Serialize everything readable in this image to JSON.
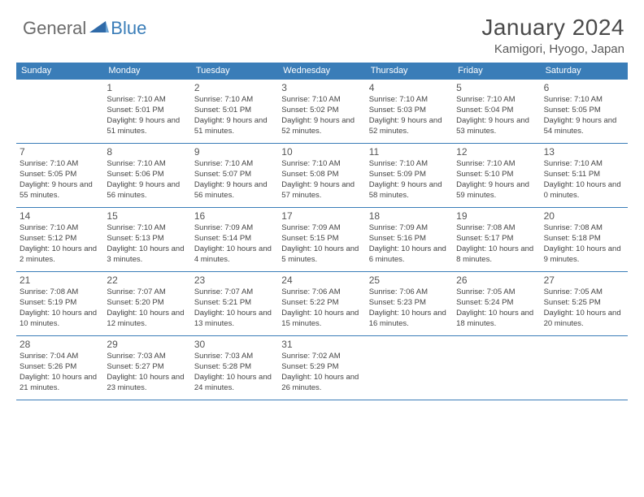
{
  "logo": {
    "general": "General",
    "blue": "Blue"
  },
  "header": {
    "month": "January 2024",
    "location": "Kamigori, Hyogo, Japan"
  },
  "weekdays": [
    "Sunday",
    "Monday",
    "Tuesday",
    "Wednesday",
    "Thursday",
    "Friday",
    "Saturday"
  ],
  "colors": {
    "header_bar": "#3a7db8",
    "text": "#444444",
    "title": "#4a4a4a",
    "rule": "#3a7db8"
  },
  "weeks": [
    [
      null,
      {
        "n": "1",
        "sunrise": "7:10 AM",
        "sunset": "5:01 PM",
        "daylight": "9 hours and 51 minutes."
      },
      {
        "n": "2",
        "sunrise": "7:10 AM",
        "sunset": "5:01 PM",
        "daylight": "9 hours and 51 minutes."
      },
      {
        "n": "3",
        "sunrise": "7:10 AM",
        "sunset": "5:02 PM",
        "daylight": "9 hours and 52 minutes."
      },
      {
        "n": "4",
        "sunrise": "7:10 AM",
        "sunset": "5:03 PM",
        "daylight": "9 hours and 52 minutes."
      },
      {
        "n": "5",
        "sunrise": "7:10 AM",
        "sunset": "5:04 PM",
        "daylight": "9 hours and 53 minutes."
      },
      {
        "n": "6",
        "sunrise": "7:10 AM",
        "sunset": "5:05 PM",
        "daylight": "9 hours and 54 minutes."
      }
    ],
    [
      {
        "n": "7",
        "sunrise": "7:10 AM",
        "sunset": "5:05 PM",
        "daylight": "9 hours and 55 minutes."
      },
      {
        "n": "8",
        "sunrise": "7:10 AM",
        "sunset": "5:06 PM",
        "daylight": "9 hours and 56 minutes."
      },
      {
        "n": "9",
        "sunrise": "7:10 AM",
        "sunset": "5:07 PM",
        "daylight": "9 hours and 56 minutes."
      },
      {
        "n": "10",
        "sunrise": "7:10 AM",
        "sunset": "5:08 PM",
        "daylight": "9 hours and 57 minutes."
      },
      {
        "n": "11",
        "sunrise": "7:10 AM",
        "sunset": "5:09 PM",
        "daylight": "9 hours and 58 minutes."
      },
      {
        "n": "12",
        "sunrise": "7:10 AM",
        "sunset": "5:10 PM",
        "daylight": "9 hours and 59 minutes."
      },
      {
        "n": "13",
        "sunrise": "7:10 AM",
        "sunset": "5:11 PM",
        "daylight": "10 hours and 0 minutes."
      }
    ],
    [
      {
        "n": "14",
        "sunrise": "7:10 AM",
        "sunset": "5:12 PM",
        "daylight": "10 hours and 2 minutes."
      },
      {
        "n": "15",
        "sunrise": "7:10 AM",
        "sunset": "5:13 PM",
        "daylight": "10 hours and 3 minutes."
      },
      {
        "n": "16",
        "sunrise": "7:09 AM",
        "sunset": "5:14 PM",
        "daylight": "10 hours and 4 minutes."
      },
      {
        "n": "17",
        "sunrise": "7:09 AM",
        "sunset": "5:15 PM",
        "daylight": "10 hours and 5 minutes."
      },
      {
        "n": "18",
        "sunrise": "7:09 AM",
        "sunset": "5:16 PM",
        "daylight": "10 hours and 6 minutes."
      },
      {
        "n": "19",
        "sunrise": "7:08 AM",
        "sunset": "5:17 PM",
        "daylight": "10 hours and 8 minutes."
      },
      {
        "n": "20",
        "sunrise": "7:08 AM",
        "sunset": "5:18 PM",
        "daylight": "10 hours and 9 minutes."
      }
    ],
    [
      {
        "n": "21",
        "sunrise": "7:08 AM",
        "sunset": "5:19 PM",
        "daylight": "10 hours and 10 minutes."
      },
      {
        "n": "22",
        "sunrise": "7:07 AM",
        "sunset": "5:20 PM",
        "daylight": "10 hours and 12 minutes."
      },
      {
        "n": "23",
        "sunrise": "7:07 AM",
        "sunset": "5:21 PM",
        "daylight": "10 hours and 13 minutes."
      },
      {
        "n": "24",
        "sunrise": "7:06 AM",
        "sunset": "5:22 PM",
        "daylight": "10 hours and 15 minutes."
      },
      {
        "n": "25",
        "sunrise": "7:06 AM",
        "sunset": "5:23 PM",
        "daylight": "10 hours and 16 minutes."
      },
      {
        "n": "26",
        "sunrise": "7:05 AM",
        "sunset": "5:24 PM",
        "daylight": "10 hours and 18 minutes."
      },
      {
        "n": "27",
        "sunrise": "7:05 AM",
        "sunset": "5:25 PM",
        "daylight": "10 hours and 20 minutes."
      }
    ],
    [
      {
        "n": "28",
        "sunrise": "7:04 AM",
        "sunset": "5:26 PM",
        "daylight": "10 hours and 21 minutes."
      },
      {
        "n": "29",
        "sunrise": "7:03 AM",
        "sunset": "5:27 PM",
        "daylight": "10 hours and 23 minutes."
      },
      {
        "n": "30",
        "sunrise": "7:03 AM",
        "sunset": "5:28 PM",
        "daylight": "10 hours and 24 minutes."
      },
      {
        "n": "31",
        "sunrise": "7:02 AM",
        "sunset": "5:29 PM",
        "daylight": "10 hours and 26 minutes."
      },
      null,
      null,
      null
    ]
  ]
}
